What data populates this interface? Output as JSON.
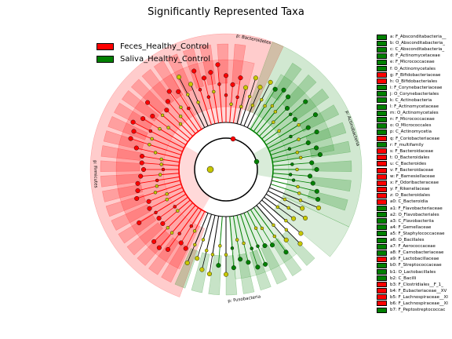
{
  "chart_data": {
    "type": "cladogram",
    "title": "Significantly Represented Taxa",
    "colors": {
      "Feces_Healthy_Control": "#ff0000",
      "Saliva_Healthy_Control": "#008000",
      "not_significant": "#c8c800"
    },
    "groups": [
      {
        "name": "Feces_Healthy_Control",
        "color": "#ff0000"
      },
      {
        "name": "Saliva_Healthy_Control",
        "color": "#008000"
      }
    ],
    "clade_labels": [
      {
        "text": "p: Bacteroidetes",
        "group": "Feces_Healthy_Control"
      },
      {
        "text": "p: Actinobacteria",
        "group": "Saliva_Healthy_Control"
      },
      {
        "text": "p: Firmicutes",
        "group": "Feces_Healthy_Control"
      },
      {
        "text": "p: Fusobacteria",
        "group": "Saliva_Healthy_Control"
      }
    ],
    "taxa": [
      {
        "key": "a",
        "name": "F_Absconditabacteria__",
        "group": "Saliva_Healthy_Control"
      },
      {
        "key": "b",
        "name": "O_Absconditabacteria_",
        "group": "Saliva_Healthy_Control"
      },
      {
        "key": "c",
        "name": "C_Absconditabacteria_",
        "group": "Saliva_Healthy_Control"
      },
      {
        "key": "d",
        "name": "F_Actinomycetaceae",
        "group": "Saliva_Healthy_Control"
      },
      {
        "key": "e",
        "name": "F_Micrococcaceae",
        "group": "Saliva_Healthy_Control"
      },
      {
        "key": "f",
        "name": "O_Actinomycetales",
        "group": "Saliva_Healthy_Control"
      },
      {
        "key": "g",
        "name": "F_Bifidobacteriaceae",
        "group": "Feces_Healthy_Control"
      },
      {
        "key": "h",
        "name": "O_Bifidobacteriales",
        "group": "Feces_Healthy_Control"
      },
      {
        "key": "i",
        "name": "F_Corynebacteriaceae",
        "group": "Saliva_Healthy_Control"
      },
      {
        "key": "j",
        "name": "O_Corynebacteriales",
        "group": "Saliva_Healthy_Control"
      },
      {
        "key": "k",
        "name": "C_Actinobacteria",
        "group": "Saliva_Healthy_Control"
      },
      {
        "key": "l",
        "name": "F_Actinomycetaceae",
        "group": "Saliva_Healthy_Control"
      },
      {
        "key": "m",
        "name": "O_Actinomycetales",
        "group": "Saliva_Healthy_Control"
      },
      {
        "key": "n",
        "name": "F_Micrococcaceae",
        "group": "Saliva_Healthy_Control"
      },
      {
        "key": "o",
        "name": "O_Micrococcales",
        "group": "Saliva_Healthy_Control"
      },
      {
        "key": "p",
        "name": "C_Actinomycetia",
        "group": "Saliva_Healthy_Control"
      },
      {
        "key": "q",
        "name": "F_Coriobacteriaceae",
        "group": "Feces_Healthy_Control"
      },
      {
        "key": "r",
        "name": "F_multifamily",
        "group": "Saliva_Healthy_Control"
      },
      {
        "key": "s",
        "name": "F_Bacteroidaceae",
        "group": "Feces_Healthy_Control"
      },
      {
        "key": "t",
        "name": "O_Bacteroidales",
        "group": "Feces_Healthy_Control"
      },
      {
        "key": "u",
        "name": "C_Bacteroides",
        "group": "Feces_Healthy_Control"
      },
      {
        "key": "v",
        "name": "F_Bacteroidaceae",
        "group": "Feces_Healthy_Control"
      },
      {
        "key": "w",
        "name": "F_Barnesiellaceae",
        "group": "Feces_Healthy_Control"
      },
      {
        "key": "x",
        "name": "F_Odoribacteraceae",
        "group": "Feces_Healthy_Control"
      },
      {
        "key": "y",
        "name": "F_Rikenellaceae",
        "group": "Feces_Healthy_Control"
      },
      {
        "key": "z",
        "name": "O_Bacteroidales",
        "group": "Feces_Healthy_Control"
      },
      {
        "key": "a0",
        "name": "C_Bacteroidia",
        "group": "Feces_Healthy_Control"
      },
      {
        "key": "a1",
        "name": "F_Flavobacteriaceae",
        "group": "Saliva_Healthy_Control"
      },
      {
        "key": "a2",
        "name": "O_Flavobacteriales",
        "group": "Saliva_Healthy_Control"
      },
      {
        "key": "a3",
        "name": "C_Flavobacteriia",
        "group": "Saliva_Healthy_Control"
      },
      {
        "key": "a4",
        "name": "F_Gemellaceae",
        "group": "Saliva_Healthy_Control"
      },
      {
        "key": "a5",
        "name": "F_Staphylococcaceae",
        "group": "Saliva_Healthy_Control"
      },
      {
        "key": "a6",
        "name": "O_Bacillales",
        "group": "Saliva_Healthy_Control"
      },
      {
        "key": "a7",
        "name": "F_Aerococcaceae",
        "group": "Saliva_Healthy_Control"
      },
      {
        "key": "a8",
        "name": "F_Carnobacteriaceae",
        "group": "Saliva_Healthy_Control"
      },
      {
        "key": "a9",
        "name": "F_Lactobacillaceae",
        "group": "Feces_Healthy_Control"
      },
      {
        "key": "b0",
        "name": "F_Streptococcaceae",
        "group": "Saliva_Healthy_Control"
      },
      {
        "key": "b1",
        "name": "O_Lactobacillales",
        "group": "Saliva_Healthy_Control"
      },
      {
        "key": "b2",
        "name": "C_Bacilli",
        "group": "Saliva_Healthy_Control"
      },
      {
        "key": "b3",
        "name": "F_Clostridiales__F_1_",
        "group": "Feces_Healthy_Control"
      },
      {
        "key": "b4",
        "name": "F_Eubacteriaceae__XV",
        "group": "Feces_Healthy_Control"
      },
      {
        "key": "b5",
        "name": "F_Lachnospiraceae__XI",
        "group": "Feces_Healthy_Control"
      },
      {
        "key": "b6",
        "name": "F_Lachnospiraceae__XI",
        "group": "Feces_Healthy_Control"
      },
      {
        "key": "b7",
        "name": "F_Peptostreptococcac",
        "group": "Saliva_Healthy_Control"
      }
    ]
  }
}
